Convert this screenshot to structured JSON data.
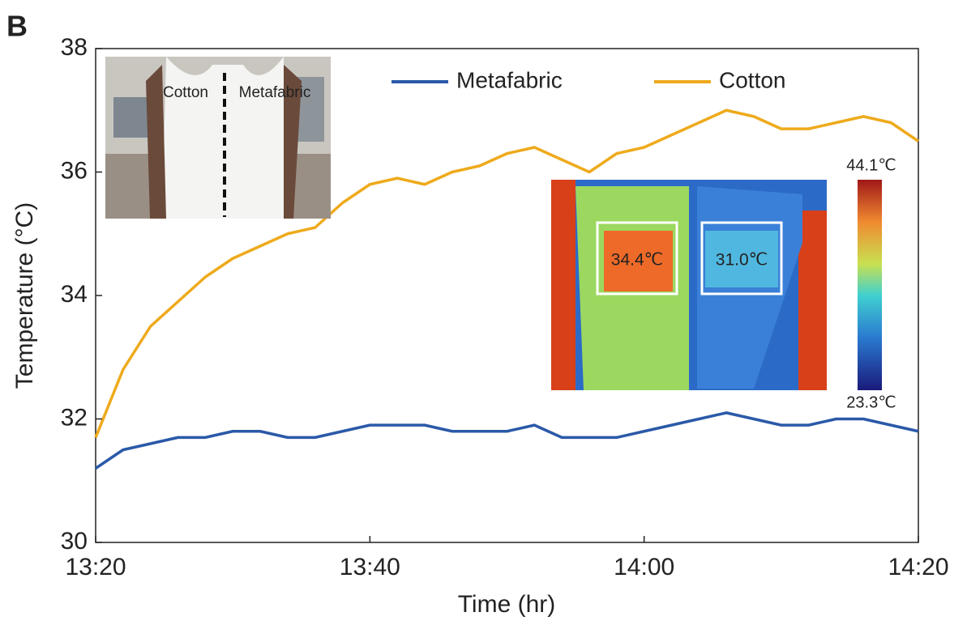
{
  "chart_data": {
    "type": "line",
    "panel_label": "B",
    "xlabel": "Time (hr)",
    "ylabel": "Temperature (°C)",
    "x": [
      "13:20",
      "13:22",
      "13:24",
      "13:26",
      "13:28",
      "13:30",
      "13:32",
      "13:34",
      "13:36",
      "13:38",
      "13:40",
      "13:42",
      "13:44",
      "13:46",
      "13:48",
      "13:50",
      "13:52",
      "13:54",
      "13:56",
      "13:58",
      "14:00",
      "14:02",
      "14:04",
      "14:06",
      "14:08",
      "14:10",
      "14:12",
      "14:14",
      "14:16",
      "14:18",
      "14:20"
    ],
    "series": [
      {
        "name": "Metafabric",
        "color": "#2b59a8",
        "values": [
          31.2,
          31.5,
          31.6,
          31.7,
          31.7,
          31.8,
          31.8,
          31.7,
          31.7,
          31.8,
          31.9,
          31.9,
          31.9,
          31.8,
          31.8,
          31.8,
          31.9,
          31.7,
          31.7,
          31.7,
          31.8,
          31.9,
          32.0,
          32.1,
          32.0,
          31.9,
          31.9,
          32.0,
          32.0,
          31.9,
          31.8
        ]
      },
      {
        "name": "Cotton",
        "color": "#eeaa1c",
        "values": [
          31.7,
          32.8,
          33.5,
          33.9,
          34.3,
          34.6,
          34.8,
          35.0,
          35.1,
          35.5,
          35.8,
          35.9,
          35.8,
          36.0,
          36.1,
          36.3,
          36.4,
          36.2,
          36.0,
          36.3,
          36.4,
          36.6,
          36.8,
          37.0,
          36.9,
          36.7,
          36.7,
          36.8,
          36.9,
          36.8,
          36.5
        ]
      }
    ],
    "xlim": [
      "13:20",
      "14:20"
    ],
    "xticks": [
      "13:20",
      "13:40",
      "14:00",
      "14:20"
    ],
    "ylim": [
      30,
      38
    ],
    "yticks": [
      30,
      32,
      34,
      36,
      38
    ],
    "photo_labels": [
      "Cotton",
      "Metafabric"
    ],
    "thermal_labels": [
      "34.4℃",
      "31.0℃"
    ],
    "colorbar_labels": [
      "44.1℃",
      "23.3℃"
    ]
  }
}
